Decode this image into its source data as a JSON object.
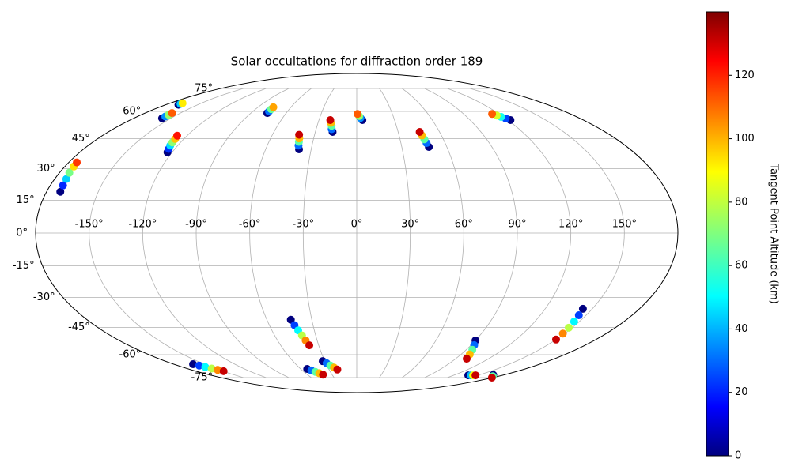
{
  "chart_data": {
    "type": "scatter",
    "projection": "mollweide",
    "title": "Solar occultations for diffraction order 189",
    "colormap": "jet",
    "grid": true,
    "xticks": [
      {
        "value": -150,
        "label": "-150°"
      },
      {
        "value": -120,
        "label": "-120°"
      },
      {
        "value": -90,
        "label": "-90°"
      },
      {
        "value": -60,
        "label": "-60°"
      },
      {
        "value": -30,
        "label": "-30°"
      },
      {
        "value": 0,
        "label": "0°"
      },
      {
        "value": 30,
        "label": "30°"
      },
      {
        "value": 60,
        "label": "60°"
      },
      {
        "value": 90,
        "label": "90°"
      },
      {
        "value": 120,
        "label": "120°"
      },
      {
        "value": 150,
        "label": "150°"
      }
    ],
    "yticks": [
      {
        "value": -75,
        "label": "-75°"
      },
      {
        "value": -60,
        "label": "-60°"
      },
      {
        "value": -45,
        "label": "-45°"
      },
      {
        "value": -30,
        "label": "-30°"
      },
      {
        "value": -15,
        "label": "-15°"
      },
      {
        "value": 0,
        "label": "0°"
      },
      {
        "value": 15,
        "label": "15°"
      },
      {
        "value": 30,
        "label": "30°"
      },
      {
        "value": 45,
        "label": "45°"
      },
      {
        "value": 60,
        "label": "60°"
      },
      {
        "value": 75,
        "label": "75°"
      }
    ],
    "colorbar": {
      "label": "Tangent Point Altitude (km)",
      "ylim": [
        0,
        140
      ],
      "yticks": [
        0,
        20,
        40,
        60,
        80,
        100,
        120
      ]
    },
    "tracks": [
      {
        "lon": [
          -172,
          -172.5,
          -173,
          -174,
          -174.5,
          -175
        ],
        "lat": [
          19,
          22,
          25,
          28,
          31,
          33
        ],
        "alt": [
          0,
          23,
          46,
          69,
          92,
          115
        ]
      },
      {
        "lon": [
          -157,
          -157,
          -157,
          -157
        ],
        "lat": [
          56,
          57,
          58,
          59
        ],
        "alt": [
          0,
          37,
          73,
          110
        ]
      },
      {
        "lon": [
          -168,
          -168,
          -168
        ],
        "lat": [
          64,
          64.5,
          65
        ],
        "alt": [
          0,
          45,
          90
        ]
      },
      {
        "lon": [
          -123,
          -124,
          -125,
          -125.5,
          -126,
          -127
        ],
        "lat": [
          38,
          39.7,
          41.4,
          43,
          44.8,
          46.5
        ],
        "alt": [
          0,
          24,
          48,
          72,
          96,
          120
        ]
      },
      {
        "lon": [
          -76,
          -76,
          -76,
          -76
        ],
        "lat": [
          59,
          60,
          61.3,
          62.5
        ],
        "alt": [
          0,
          33,
          67,
          100
        ]
      },
      {
        "lon": [
          -38,
          -39,
          -39.5,
          -40,
          -41
        ],
        "lat": [
          39.5,
          41.4,
          43.3,
          45.1,
          47
        ],
        "alt": [
          0,
          32,
          65,
          97,
          130
        ]
      },
      {
        "lon": [
          -17.5,
          -18.5,
          -19,
          -20,
          -21
        ],
        "lat": [
          48.5,
          50,
          51.8,
          53.4,
          55
        ],
        "alt": [
          0,
          32,
          65,
          97,
          130
        ]
      },
      {
        "lon": [
          4.5,
          3,
          2,
          0.7
        ],
        "lat": [
          55,
          56.2,
          57.3,
          58.5
        ],
        "alt": [
          0,
          37,
          73,
          110
        ]
      },
      {
        "lon": [
          48,
          47.4,
          46.8,
          46.2,
          45.6
        ],
        "lat": [
          40.7,
          42.7,
          44.6,
          46.6,
          48.5
        ],
        "alt": [
          0,
          32,
          65,
          97,
          130
        ]
      },
      {
        "lon": [
          122,
          120,
          118,
          116,
          114
        ],
        "lat": [
          55,
          55.9,
          56.8,
          57.6,
          58.5
        ],
        "alt": [
          0,
          27,
          55,
          82,
          110
        ]
      },
      {
        "lon": [
          -44,
          -42.7,
          -41.4,
          -40,
          -38.7,
          -37.4
        ],
        "lat": [
          -41,
          -43.8,
          -46.5,
          -49.2,
          -51.9,
          -54.6
        ],
        "alt": [
          0,
          26,
          52,
          78,
          104,
          130
        ]
      },
      {
        "lon": [
          -161,
          -158.6,
          -156.2,
          -153.8,
          -151.4,
          -149
        ],
        "lat": [
          -65.8,
          -66.7,
          -67.6,
          -68.6,
          -69.5,
          -70.4
        ],
        "alt": [
          0,
          26,
          52,
          78,
          104,
          130
        ]
      },
      {
        "lon": [
          -53,
          -50,
          -47,
          -44,
          -41
        ],
        "lat": [
          -68.9,
          -69.9,
          -70.9,
          -71.8,
          -72.8
        ],
        "alt": [
          0,
          32,
          65,
          97,
          130
        ]
      },
      {
        "lon": [
          -32,
          -29.2,
          -26.5,
          -23.7,
          -21
        ],
        "lat": [
          -63.9,
          -65.2,
          -66.6,
          -68,
          -69.3
        ],
        "alt": [
          0,
          32,
          65,
          97,
          130
        ]
      },
      {
        "lon": [
          90,
          92.5,
          95,
          97.5,
          100
        ],
        "lat": [
          -51.9,
          -54.5,
          -57.1,
          -59.8,
          -62.4
        ],
        "alt": [
          0,
          32,
          65,
          97,
          130
        ]
      },
      {
        "lon": [
          138,
          141,
          144,
          147
        ],
        "lat": [
          -73.3,
          -73.3,
          -73.3,
          -73.3
        ],
        "alt": [
          0,
          43,
          87,
          130
        ]
      },
      {
        "lon": [
          167,
          173,
          179
        ],
        "lat": [
          -73,
          -74,
          -75
        ],
        "alt": [
          0,
          65,
          130
        ]
      },
      {
        "lon": [
          144,
          145.2,
          146.4,
          147.6,
          148.8,
          150
        ],
        "lat": [
          -35.5,
          -38.7,
          -41.9,
          -45.1,
          -48.2,
          -51.4
        ],
        "alt": [
          0,
          26,
          52,
          78,
          104,
          130
        ]
      }
    ]
  }
}
